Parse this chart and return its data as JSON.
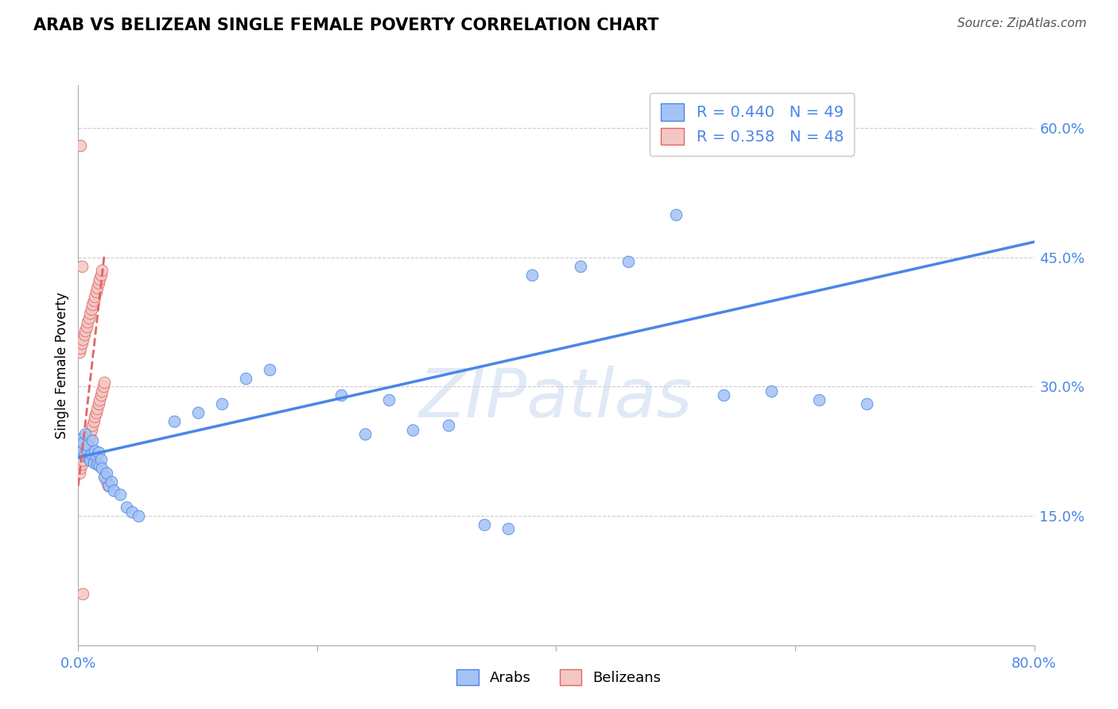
{
  "title": "ARAB VS BELIZEAN SINGLE FEMALE POVERTY CORRELATION CHART",
  "source": "Source: ZipAtlas.com",
  "ylabel": "Single Female Poverty",
  "xlim": [
    0.0,
    0.8
  ],
  "ylim": [
    0.0,
    0.65
  ],
  "ytick_labels_right": [
    "15.0%",
    "30.0%",
    "45.0%",
    "60.0%"
  ],
  "ytick_vals_right": [
    0.15,
    0.3,
    0.45,
    0.6
  ],
  "blue_color": "#a4c2f4",
  "pink_color": "#f4c7c3",
  "blue_line_color": "#4a86e8",
  "pink_line_color": "#e06666",
  "watermark_text": "ZIPatlas",
  "arab_x": [
    0.001,
    0.002,
    0.003,
    0.004,
    0.005,
    0.006,
    0.007,
    0.008,
    0.009,
    0.01,
    0.011,
    0.012,
    0.013,
    0.014,
    0.015,
    0.016,
    0.017,
    0.018,
    0.019,
    0.02,
    0.022,
    0.024,
    0.026,
    0.028,
    0.03,
    0.035,
    0.04,
    0.045,
    0.05,
    0.08,
    0.1,
    0.12,
    0.14,
    0.16,
    0.22,
    0.26,
    0.38,
    0.42,
    0.46,
    0.5,
    0.54,
    0.58,
    0.62,
    0.66,
    0.24,
    0.28,
    0.31,
    0.34,
    0.36
  ],
  "arab_y": [
    0.23,
    0.24,
    0.225,
    0.235,
    0.22,
    0.245,
    0.228,
    0.232,
    0.218,
    0.215,
    0.222,
    0.238,
    0.212,
    0.226,
    0.219,
    0.21,
    0.224,
    0.208,
    0.216,
    0.205,
    0.195,
    0.2,
    0.185,
    0.19,
    0.18,
    0.175,
    0.16,
    0.155,
    0.15,
    0.26,
    0.27,
    0.28,
    0.31,
    0.32,
    0.29,
    0.285,
    0.43,
    0.44,
    0.445,
    0.5,
    0.29,
    0.295,
    0.285,
    0.28,
    0.245,
    0.25,
    0.255,
    0.14,
    0.135
  ],
  "belizean_x": [
    0.001,
    0.002,
    0.003,
    0.004,
    0.005,
    0.006,
    0.007,
    0.008,
    0.009,
    0.01,
    0.011,
    0.012,
    0.013,
    0.014,
    0.015,
    0.016,
    0.017,
    0.018,
    0.019,
    0.02,
    0.021,
    0.022,
    0.023,
    0.024,
    0.025,
    0.001,
    0.002,
    0.003,
    0.004,
    0.005,
    0.006,
    0.007,
    0.008,
    0.009,
    0.01,
    0.011,
    0.012,
    0.013,
    0.014,
    0.015,
    0.016,
    0.017,
    0.018,
    0.019,
    0.02,
    0.002,
    0.003,
    0.004
  ],
  "belizean_y": [
    0.2,
    0.205,
    0.21,
    0.215,
    0.22,
    0.225,
    0.23,
    0.235,
    0.24,
    0.245,
    0.25,
    0.255,
    0.26,
    0.265,
    0.27,
    0.275,
    0.28,
    0.285,
    0.29,
    0.295,
    0.3,
    0.305,
    0.195,
    0.19,
    0.185,
    0.34,
    0.345,
    0.35,
    0.355,
    0.36,
    0.365,
    0.37,
    0.375,
    0.38,
    0.385,
    0.39,
    0.395,
    0.4,
    0.405,
    0.41,
    0.415,
    0.42,
    0.425,
    0.43,
    0.435,
    0.58,
    0.44,
    0.06
  ],
  "blue_trend_x0": 0.0,
  "blue_trend_y0": 0.218,
  "blue_trend_x1": 0.8,
  "blue_trend_y1": 0.468,
  "pink_trend_x0": 0.0,
  "pink_trend_y0": 0.185,
  "pink_trend_x1": 0.022,
  "pink_trend_y1": 0.455
}
